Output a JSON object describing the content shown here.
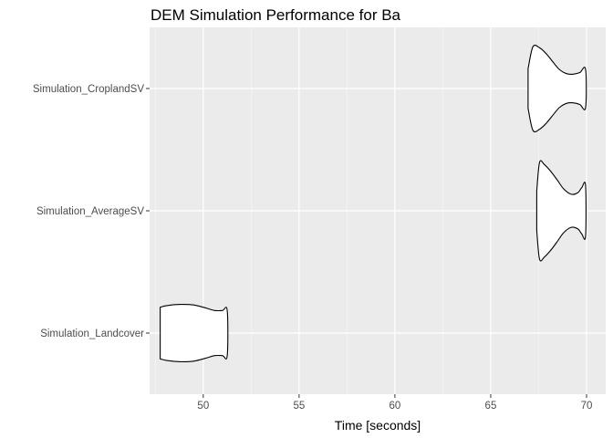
{
  "chart_data": {
    "type": "violin",
    "title": "DEM Simulation Performance for Ba",
    "xlabel": "Time [seconds]",
    "ylabel": "",
    "xlim": [
      47.2,
      71.0
    ],
    "x_ticks": [
      50,
      55,
      60,
      65,
      70
    ],
    "categories": [
      "Simulation_Landcover",
      "Simulation_AverageSV",
      "Simulation_CroplandSV"
    ],
    "series": [
      {
        "category": "Simulation_Landcover",
        "profile": [
          [
            47.75,
            0.47
          ],
          [
            48.1,
            0.5
          ],
          [
            48.8,
            0.52
          ],
          [
            49.5,
            0.51
          ],
          [
            50.1,
            0.46
          ],
          [
            50.6,
            0.41
          ],
          [
            51.0,
            0.41
          ],
          [
            51.25,
            0.41
          ]
        ]
      },
      {
        "category": "Simulation_AverageSV",
        "profile": [
          [
            67.4,
            0.36
          ],
          [
            67.55,
            0.88
          ],
          [
            67.8,
            0.84
          ],
          [
            68.1,
            0.73
          ],
          [
            68.45,
            0.57
          ],
          [
            68.8,
            0.4
          ],
          [
            69.2,
            0.3
          ],
          [
            69.55,
            0.33
          ],
          [
            69.75,
            0.42
          ],
          [
            69.95,
            0.46
          ]
        ]
      },
      {
        "category": "Simulation_CroplandSV",
        "profile": [
          [
            66.95,
            0.36
          ],
          [
            67.2,
            0.76
          ],
          [
            67.55,
            0.74
          ],
          [
            67.9,
            0.63
          ],
          [
            68.3,
            0.46
          ],
          [
            68.6,
            0.34
          ],
          [
            68.95,
            0.27
          ],
          [
            69.3,
            0.26
          ],
          [
            69.65,
            0.29
          ],
          [
            69.95,
            0.35
          ]
        ]
      }
    ],
    "colors": {
      "panel_background": "#ebebeb",
      "grid_major": "#ffffff",
      "grid_minor": "#f5f5f5",
      "violin_fill": "#ffffff",
      "violin_outline": "#000000",
      "tick_label": "#4d4d4d"
    },
    "grid": true,
    "legend": "none"
  }
}
